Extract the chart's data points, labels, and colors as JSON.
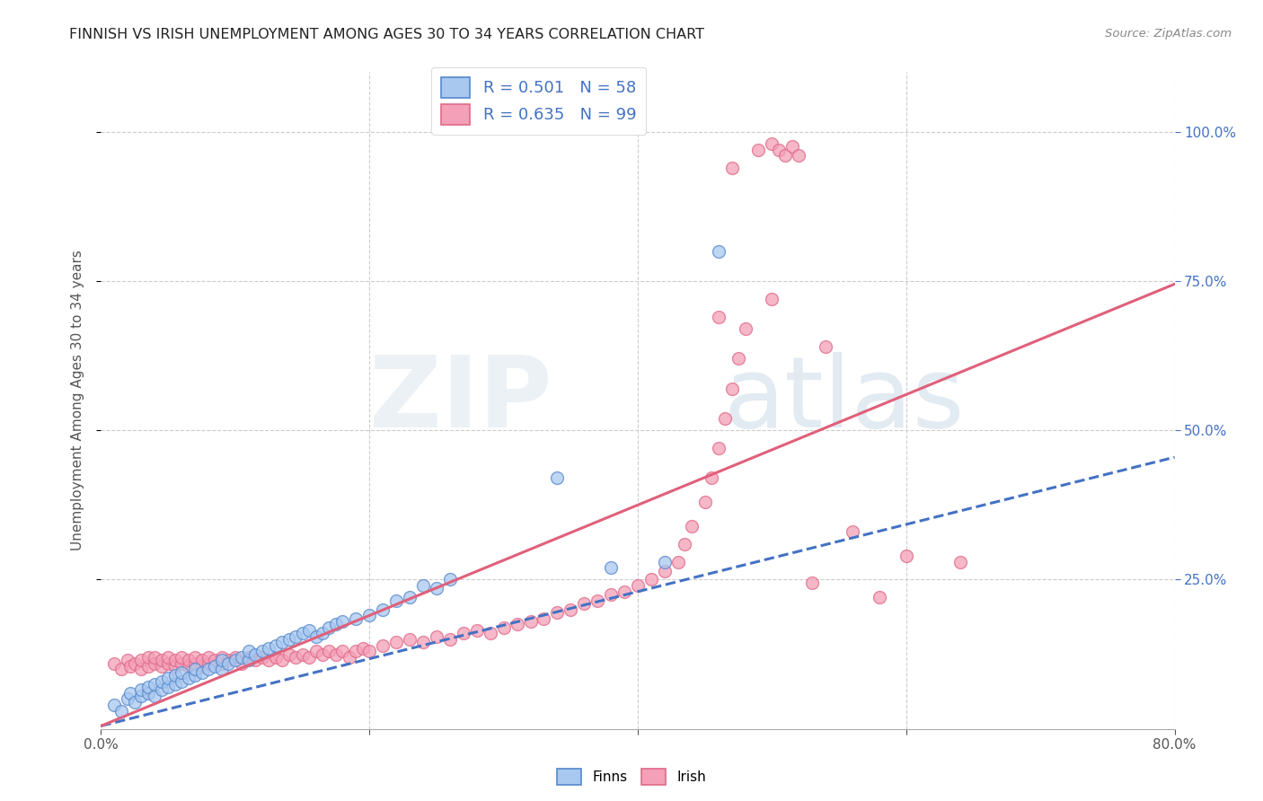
{
  "title": "FINNISH VS IRISH UNEMPLOYMENT AMONG AGES 30 TO 34 YEARS CORRELATION CHART",
  "source": "Source: ZipAtlas.com",
  "ylabel": "Unemployment Among Ages 30 to 34 years",
  "xlim": [
    0.0,
    0.8
  ],
  "ylim": [
    0.0,
    1.1
  ],
  "finns_R": "0.501",
  "finns_N": "58",
  "irish_R": "0.635",
  "irish_N": "99",
  "finns_color": "#A8C8F0",
  "irish_color": "#F4A0B8",
  "finns_edge_color": "#5588CC",
  "irish_edge_color": "#E06888",
  "finns_line_color": "#4472C4",
  "irish_line_color": "#E0607A",
  "rtick_color": "#4472C4",
  "finns_scatter": [
    [
      0.01,
      0.04
    ],
    [
      0.015,
      0.03
    ],
    [
      0.02,
      0.05
    ],
    [
      0.022,
      0.06
    ],
    [
      0.025,
      0.045
    ],
    [
      0.03,
      0.055
    ],
    [
      0.03,
      0.065
    ],
    [
      0.035,
      0.06
    ],
    [
      0.035,
      0.07
    ],
    [
      0.04,
      0.055
    ],
    [
      0.04,
      0.075
    ],
    [
      0.045,
      0.065
    ],
    [
      0.045,
      0.08
    ],
    [
      0.05,
      0.07
    ],
    [
      0.05,
      0.085
    ],
    [
      0.055,
      0.075
    ],
    [
      0.055,
      0.09
    ],
    [
      0.06,
      0.08
    ],
    [
      0.06,
      0.095
    ],
    [
      0.065,
      0.085
    ],
    [
      0.07,
      0.09
    ],
    [
      0.07,
      0.1
    ],
    [
      0.075,
      0.095
    ],
    [
      0.08,
      0.1
    ],
    [
      0.085,
      0.105
    ],
    [
      0.09,
      0.1
    ],
    [
      0.09,
      0.115
    ],
    [
      0.095,
      0.11
    ],
    [
      0.1,
      0.115
    ],
    [
      0.105,
      0.12
    ],
    [
      0.11,
      0.115
    ],
    [
      0.11,
      0.13
    ],
    [
      0.115,
      0.125
    ],
    [
      0.12,
      0.13
    ],
    [
      0.125,
      0.135
    ],
    [
      0.13,
      0.14
    ],
    [
      0.135,
      0.145
    ],
    [
      0.14,
      0.15
    ],
    [
      0.145,
      0.155
    ],
    [
      0.15,
      0.16
    ],
    [
      0.155,
      0.165
    ],
    [
      0.16,
      0.155
    ],
    [
      0.165,
      0.16
    ],
    [
      0.17,
      0.17
    ],
    [
      0.175,
      0.175
    ],
    [
      0.18,
      0.18
    ],
    [
      0.19,
      0.185
    ],
    [
      0.2,
      0.19
    ],
    [
      0.21,
      0.2
    ],
    [
      0.22,
      0.215
    ],
    [
      0.23,
      0.22
    ],
    [
      0.24,
      0.24
    ],
    [
      0.25,
      0.235
    ],
    [
      0.26,
      0.25
    ],
    [
      0.34,
      0.42
    ],
    [
      0.38,
      0.27
    ],
    [
      0.42,
      0.28
    ],
    [
      0.46,
      0.8
    ]
  ],
  "irish_scatter": [
    [
      0.01,
      0.11
    ],
    [
      0.015,
      0.1
    ],
    [
      0.02,
      0.115
    ],
    [
      0.022,
      0.105
    ],
    [
      0.025,
      0.11
    ],
    [
      0.03,
      0.1
    ],
    [
      0.03,
      0.115
    ],
    [
      0.035,
      0.105
    ],
    [
      0.035,
      0.12
    ],
    [
      0.04,
      0.11
    ],
    [
      0.04,
      0.12
    ],
    [
      0.045,
      0.105
    ],
    [
      0.045,
      0.115
    ],
    [
      0.05,
      0.11
    ],
    [
      0.05,
      0.12
    ],
    [
      0.055,
      0.105
    ],
    [
      0.055,
      0.115
    ],
    [
      0.06,
      0.11
    ],
    [
      0.06,
      0.12
    ],
    [
      0.065,
      0.105
    ],
    [
      0.065,
      0.115
    ],
    [
      0.07,
      0.11
    ],
    [
      0.07,
      0.12
    ],
    [
      0.075,
      0.105
    ],
    [
      0.075,
      0.115
    ],
    [
      0.08,
      0.11
    ],
    [
      0.08,
      0.12
    ],
    [
      0.085,
      0.115
    ],
    [
      0.09,
      0.11
    ],
    [
      0.09,
      0.12
    ],
    [
      0.095,
      0.115
    ],
    [
      0.1,
      0.12
    ],
    [
      0.105,
      0.11
    ],
    [
      0.11,
      0.12
    ],
    [
      0.115,
      0.115
    ],
    [
      0.12,
      0.12
    ],
    [
      0.125,
      0.115
    ],
    [
      0.13,
      0.12
    ],
    [
      0.135,
      0.115
    ],
    [
      0.14,
      0.125
    ],
    [
      0.145,
      0.12
    ],
    [
      0.15,
      0.125
    ],
    [
      0.155,
      0.12
    ],
    [
      0.16,
      0.13
    ],
    [
      0.165,
      0.125
    ],
    [
      0.17,
      0.13
    ],
    [
      0.175,
      0.125
    ],
    [
      0.18,
      0.13
    ],
    [
      0.185,
      0.12
    ],
    [
      0.19,
      0.13
    ],
    [
      0.195,
      0.135
    ],
    [
      0.2,
      0.13
    ],
    [
      0.21,
      0.14
    ],
    [
      0.22,
      0.145
    ],
    [
      0.23,
      0.15
    ],
    [
      0.24,
      0.145
    ],
    [
      0.25,
      0.155
    ],
    [
      0.26,
      0.15
    ],
    [
      0.27,
      0.16
    ],
    [
      0.28,
      0.165
    ],
    [
      0.29,
      0.16
    ],
    [
      0.3,
      0.17
    ],
    [
      0.31,
      0.175
    ],
    [
      0.32,
      0.18
    ],
    [
      0.33,
      0.185
    ],
    [
      0.34,
      0.195
    ],
    [
      0.35,
      0.2
    ],
    [
      0.36,
      0.21
    ],
    [
      0.37,
      0.215
    ],
    [
      0.38,
      0.225
    ],
    [
      0.39,
      0.23
    ],
    [
      0.4,
      0.24
    ],
    [
      0.41,
      0.25
    ],
    [
      0.42,
      0.265
    ],
    [
      0.43,
      0.28
    ],
    [
      0.435,
      0.31
    ],
    [
      0.44,
      0.34
    ],
    [
      0.45,
      0.38
    ],
    [
      0.455,
      0.42
    ],
    [
      0.46,
      0.47
    ],
    [
      0.465,
      0.52
    ],
    [
      0.47,
      0.57
    ],
    [
      0.475,
      0.62
    ],
    [
      0.48,
      0.67
    ],
    [
      0.47,
      0.94
    ],
    [
      0.49,
      0.97
    ],
    [
      0.5,
      0.98
    ],
    [
      0.505,
      0.97
    ],
    [
      0.51,
      0.96
    ],
    [
      0.515,
      0.975
    ],
    [
      0.52,
      0.96
    ],
    [
      0.46,
      0.69
    ],
    [
      0.5,
      0.72
    ],
    [
      0.54,
      0.64
    ],
    [
      0.56,
      0.33
    ],
    [
      0.6,
      0.29
    ],
    [
      0.64,
      0.28
    ],
    [
      0.53,
      0.245
    ],
    [
      0.58,
      0.22
    ]
  ],
  "finns_line_x": [
    0.0,
    0.8
  ],
  "finns_line_y": [
    0.005,
    0.455
  ],
  "irish_line_x": [
    0.0,
    0.8
  ],
  "irish_line_y": [
    0.005,
    0.745
  ]
}
